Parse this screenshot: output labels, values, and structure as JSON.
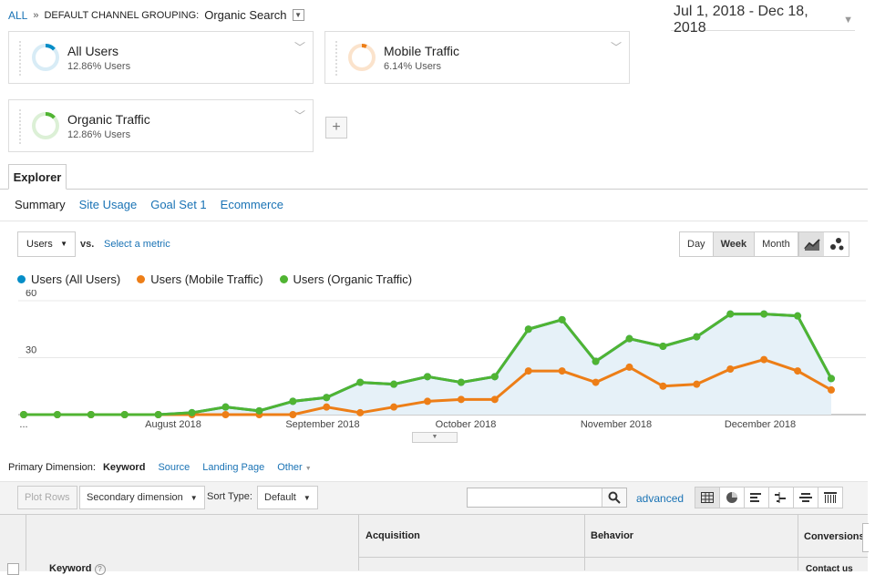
{
  "breadcrumb": {
    "all": "ALL",
    "separator": "»",
    "dimension_label": "DEFAULT CHANNEL GROUPING:",
    "dimension_value": "Organic Search"
  },
  "date_range": "Jul 1, 2018 - Dec 18, 2018",
  "segments": [
    {
      "name": "All Users",
      "pct": "12.86% Users",
      "color": "#058dc7",
      "fraction": 0.1286
    },
    {
      "name": "Mobile Traffic",
      "pct": "6.14% Users",
      "color": "#ed7e17",
      "fraction": 0.0614
    },
    {
      "name": "Organic Traffic",
      "pct": "12.86% Users",
      "color": "#50b432",
      "fraction": 0.1286
    }
  ],
  "add_segment": "+",
  "explorer_tab": "Explorer",
  "subtabs": [
    "Summary",
    "Site Usage",
    "Goal Set 1",
    "Ecommerce"
  ],
  "metric": {
    "selected": "Users",
    "vs": "vs.",
    "select_metric": "Select a metric"
  },
  "granularity": {
    "options": [
      "Day",
      "Week",
      "Month"
    ],
    "selected": "Week"
  },
  "chart_data": {
    "type": "line",
    "legend_position": "top-left",
    "y_ticks": [
      60,
      30
    ],
    "ylim": [
      0,
      60
    ],
    "x_labels": [
      "...",
      "August 2018",
      "September 2018",
      "October 2018",
      "November 2018",
      "December 2018"
    ],
    "series": [
      {
        "name": "Users (All Users)",
        "color": "#058dc7",
        "values": [
          0,
          0,
          0,
          0,
          0,
          1,
          4,
          2,
          7,
          9,
          17,
          16,
          20,
          17,
          20,
          45,
          50,
          28,
          40,
          36,
          41,
          53,
          53,
          52,
          19
        ]
      },
      {
        "name": "Users (Mobile Traffic)",
        "color": "#ed7e17",
        "values": [
          0,
          0,
          0,
          0,
          0,
          0,
          0,
          0,
          0,
          4,
          1,
          4,
          7,
          8,
          8,
          23,
          23,
          17,
          25,
          15,
          16,
          24,
          29,
          23,
          13
        ]
      },
      {
        "name": "Users (Organic Traffic)",
        "color": "#50b432",
        "values": [
          0,
          0,
          0,
          0,
          0,
          1,
          4,
          2,
          7,
          9,
          17,
          16,
          20,
          17,
          20,
          45,
          50,
          28,
          40,
          36,
          41,
          53,
          53,
          52,
          19
        ]
      }
    ]
  },
  "primary_dimension": {
    "label": "Primary Dimension:",
    "selected": "Keyword",
    "options": [
      "Source",
      "Landing Page",
      "Other"
    ]
  },
  "table_toolbar": {
    "plot_rows": "Plot Rows",
    "secondary_dimension": "Secondary dimension",
    "sort_type_label": "Sort Type:",
    "sort_type": "Default",
    "advanced": "advanced"
  },
  "table": {
    "groups": [
      "Acquisition",
      "Behavior",
      "Conversions"
    ],
    "keyword_header": "Keyword",
    "goal": "Contact us"
  }
}
